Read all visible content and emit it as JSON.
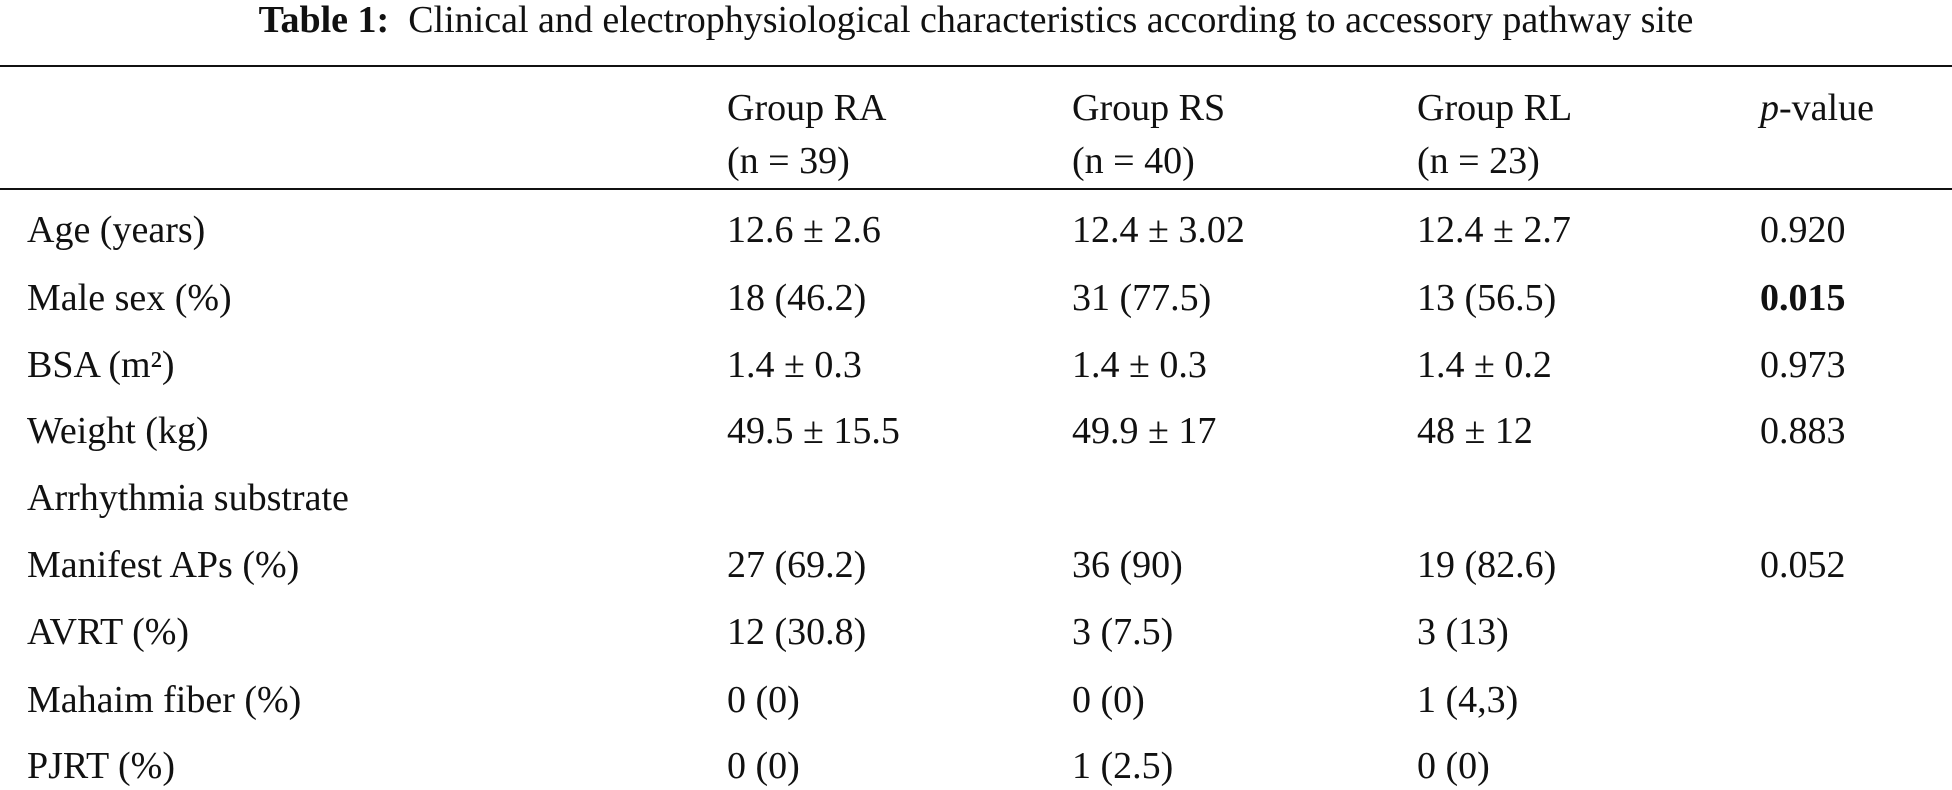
{
  "title": {
    "label": "Table 1:",
    "text": "Clinical and electrophysiological characteristics according to accessory pathway site"
  },
  "table": {
    "header": [
      {
        "line1": "Group RA",
        "line2": "(n = 39)"
      },
      {
        "line1": "Group RS",
        "line2": "(n = 40)"
      },
      {
        "line1": "Group RL",
        "line2": "(n = 23)"
      },
      {
        "italic": "p",
        "rest": "-value"
      }
    ],
    "rows": [
      [
        "Age (years)",
        "12.6 ± 2.6",
        "12.4 ± 3.02",
        "12.4 ± 2.7",
        "0.920"
      ],
      [
        "Male sex (%)",
        "18 (46.2)",
        "31 (77.5)",
        "13 (56.5)",
        {
          "text": "0.015",
          "bold": true
        }
      ],
      [
        "BSA (m²)",
        "1.4 ± 0.3",
        "1.4 ± 0.3",
        "1.4 ± 0.2",
        "0.973"
      ],
      [
        "Weight (kg)",
        "49.5 ± 15.5",
        "49.9 ± 17",
        "48 ± 12",
        "0.883"
      ],
      [
        "Arrhythmia substrate",
        null,
        null,
        null,
        null
      ],
      [
        "Manifest APs (%)",
        "27 (69.2)",
        "36 (90)",
        "19 (82.6)",
        "0.052"
      ],
      [
        "AVRT (%)",
        "12 (30.8)",
        "3 (7.5)",
        "3 (13)",
        null
      ],
      [
        "Mahaim fiber (%)",
        "0 (0)",
        "0 (0)",
        "1 (4,3)",
        null
      ],
      [
        "PJRT (%)",
        "0 (0)",
        "1 (2.5)",
        "0 (0)",
        null
      ]
    ]
  }
}
